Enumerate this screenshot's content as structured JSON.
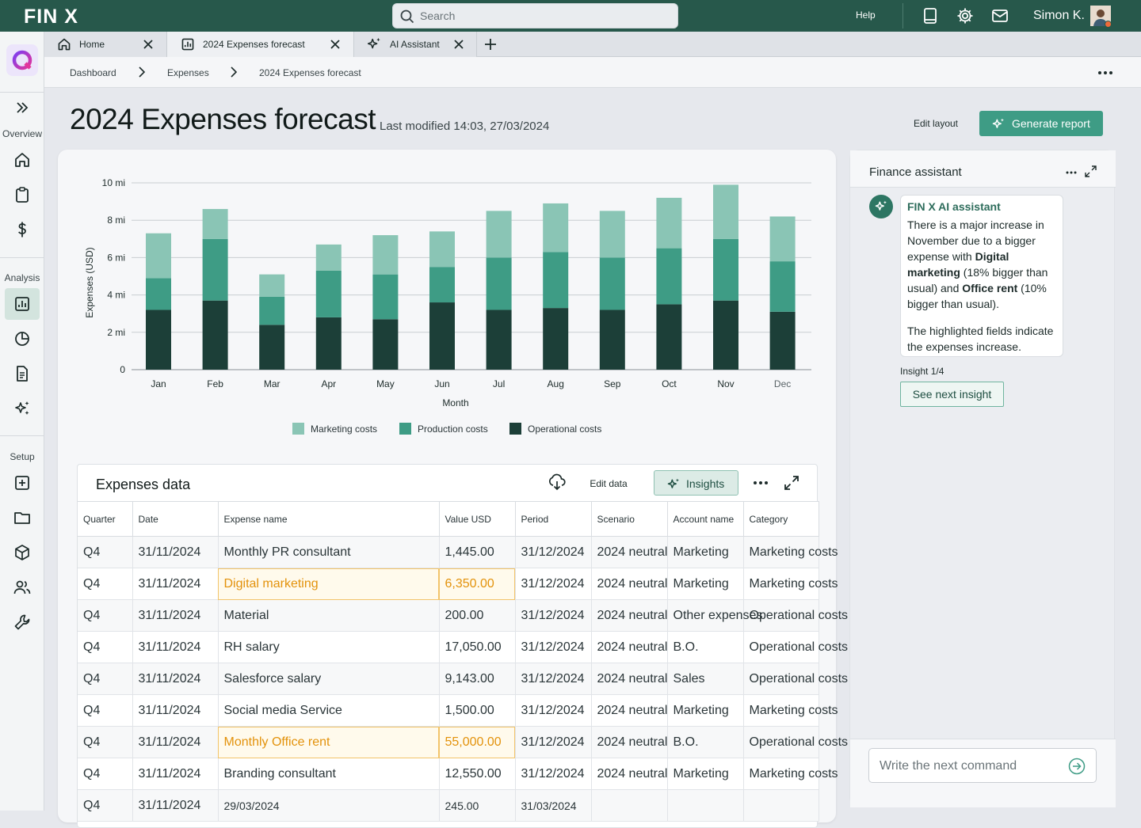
{
  "brand": {
    "name": "FIN X",
    "accent": "#27584b",
    "button": "#3e9c85"
  },
  "search": {
    "placeholder": "Search"
  },
  "topbar": {
    "help": "Help",
    "user": "Simon K.",
    "icons": [
      "book-icon",
      "gear-icon",
      "mail-icon"
    ]
  },
  "sidebar": {
    "sections": {
      "overview": "Overview",
      "analysis": "Analysis",
      "setup": "Setup"
    },
    "items": [
      "expand-icon",
      "home-icon",
      "clipboard-icon",
      "dollar-icon",
      "chart-icon",
      "pie-icon",
      "document-icon",
      "sparkle-icon",
      "add-icon",
      "folder-icon",
      "box-icon",
      "users-icon",
      "wrench-icon"
    ]
  },
  "tabs": [
    {
      "label": "Home",
      "icon": "home-icon"
    },
    {
      "label": "2024 Expenses forecast",
      "icon": "chart-icon"
    },
    {
      "label": "AI Assistant",
      "icon": "sparkle-icon"
    }
  ],
  "breadcrumb": [
    "Dashboard",
    "Expenses",
    "2024 Expenses forecast"
  ],
  "page": {
    "title": "2024 Expenses forecast",
    "last_modified": "Last modified 14:03, 27/03/2024",
    "edit_layout": "Edit layout",
    "generate_report": "Generate report"
  },
  "chart_data": {
    "type": "bar",
    "stacked": true,
    "categories": [
      "Jan",
      "Feb",
      "Mar",
      "Apr",
      "May",
      "Jun",
      "Jul",
      "Aug",
      "Sep",
      "Oct",
      "Nov",
      "Dec"
    ],
    "series": [
      {
        "name": "Operational costs",
        "color": "#1c3f38",
        "values": [
          3.2,
          3.7,
          2.4,
          2.8,
          2.7,
          3.6,
          3.2,
          3.3,
          3.2,
          3.5,
          3.7,
          3.1
        ]
      },
      {
        "name": "Production costs",
        "color": "#3e9c85",
        "values": [
          1.7,
          3.3,
          1.5,
          2.5,
          2.4,
          1.9,
          2.8,
          3.0,
          2.8,
          3.0,
          3.3,
          2.7
        ]
      },
      {
        "name": "Marketing costs",
        "color": "#8ac5b5",
        "values": [
          2.4,
          1.6,
          1.2,
          1.4,
          2.1,
          1.9,
          2.5,
          2.6,
          2.5,
          2.7,
          2.9,
          2.4
        ]
      }
    ],
    "title": "",
    "xlabel": "Month",
    "ylabel": "Expenses (USD)",
    "ylim": [
      0,
      10
    ],
    "yticks": [
      "0",
      "2 mi",
      "4 mi",
      "6 mi",
      "8 mi",
      "10 mi"
    ],
    "legend": "bottom-center",
    "grid": true
  },
  "legend": [
    {
      "label": "Marketing costs",
      "color": "#8ac5b5"
    },
    {
      "label": "Production costs",
      "color": "#3e9c85"
    },
    {
      "label": "Operational costs",
      "color": "#1c3f38"
    }
  ],
  "table": {
    "title": "Expenses data",
    "edit_data": "Edit data",
    "insights": "Insights",
    "columns": [
      "Quarter",
      "Date",
      "Expense name",
      "Value USD",
      "Period",
      "Scenario",
      "Account name",
      "Category"
    ],
    "rows": [
      [
        "Q4",
        "31/11/2024",
        "Monthly PR consultant",
        "1,445.00",
        "31/12/2024",
        "2024 neutral",
        "Marketing",
        "Marketing costs"
      ],
      [
        "Q4",
        "31/11/2024",
        "Digital marketing",
        "6,350.00",
        "31/12/2024",
        "2024 neutral",
        "Marketing",
        "Marketing costs"
      ],
      [
        "Q4",
        "31/11/2024",
        "Material",
        "200.00",
        "31/12/2024",
        "2024 neutral",
        "Other expenses",
        "Operational costs"
      ],
      [
        "Q4",
        "31/11/2024",
        "RH salary",
        "17,050.00",
        "31/12/2024",
        "2024 neutral",
        "B.O.",
        "Operational costs"
      ],
      [
        "Q4",
        "31/11/2024",
        "Salesforce salary",
        "9,143.00",
        "31/12/2024",
        "2024 neutral",
        "Sales",
        "Operational costs"
      ],
      [
        "Q4",
        "31/11/2024",
        "Social media Service",
        "1,500.00",
        "31/12/2024",
        "2024 neutral",
        "Marketing",
        "Marketing costs"
      ],
      [
        "Q4",
        "31/11/2024",
        "Monthly Office rent",
        "55,000.00",
        "31/12/2024",
        "2024 neutral",
        "B.O.",
        "Operational costs"
      ],
      [
        "Q4",
        "31/11/2024",
        "Branding consultant",
        "12,550.00",
        "31/12/2024",
        "2024 neutral",
        "Marketing",
        "Marketing costs"
      ],
      [
        "Q4",
        "31/11/2024",
        "29/03/2024",
        "245.00",
        "31/03/2024",
        "",
        "",
        ""
      ]
    ],
    "highlighted_rows": [
      1,
      6
    ]
  },
  "assistant": {
    "title": "Finance assistant",
    "sender": "FIN X AI assistant",
    "message_parts": [
      "There is a major increase in November due to a bigger expense with ",
      "Digital marketing",
      " (18% bigger than usual) and ",
      "Office rent",
      " (10% bigger than usual)."
    ],
    "message2": "The highlighted fields indicate the expenses increase.",
    "insight_count": "Insight 1/4",
    "next_insight": "See next insight",
    "command_placeholder": "Write the next command"
  }
}
